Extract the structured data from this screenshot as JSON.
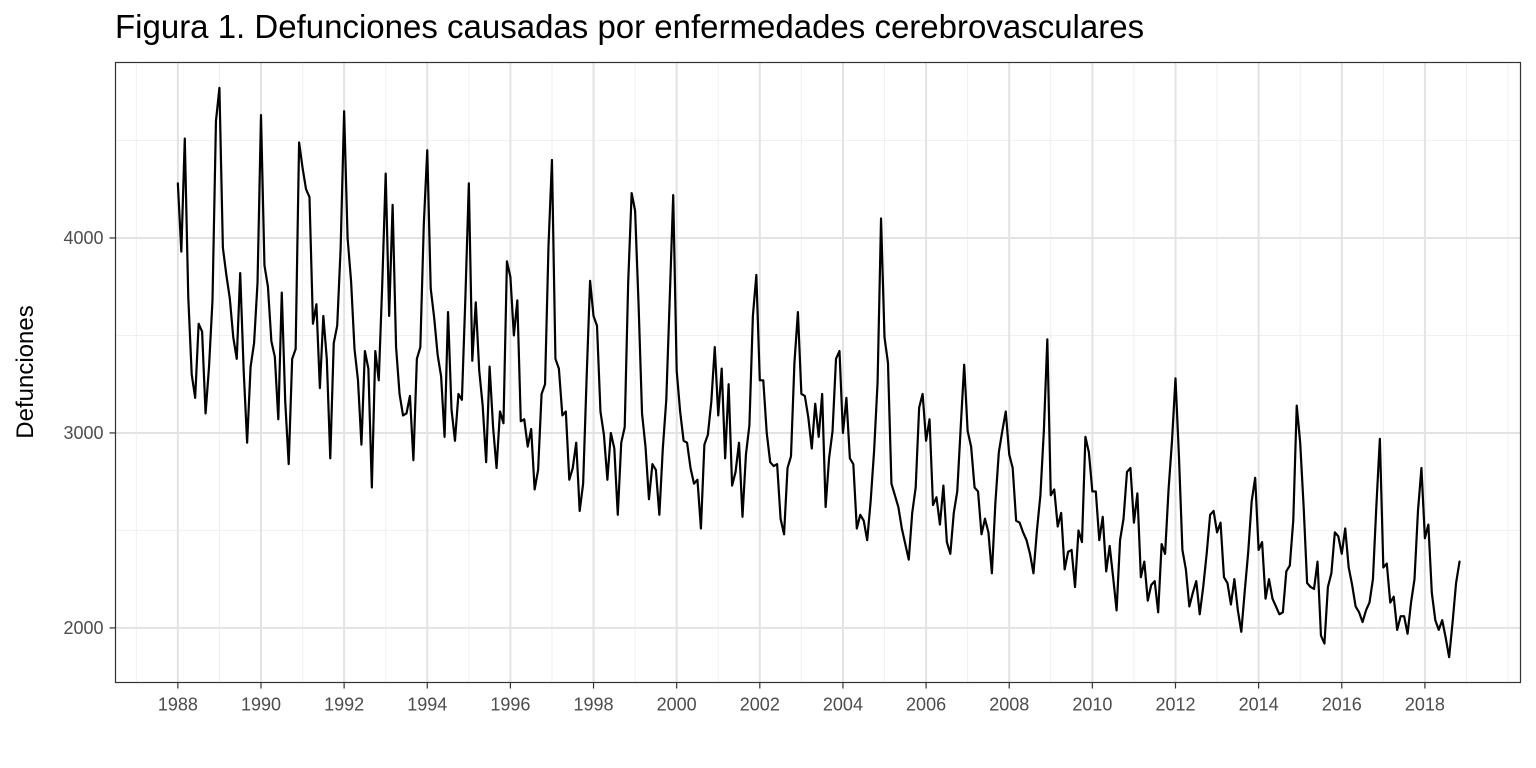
{
  "chart_data": {
    "type": "line",
    "title": "Figura 1. Defunciones causadas por enfermedades cerebrovasculares",
    "xlabel": "",
    "ylabel": "Defunciones",
    "x_start": "1988-01",
    "x_frequency": "monthly",
    "xlim": [
      1986.5,
      2020.3
    ],
    "ylim": [
      1720,
      4900
    ],
    "x_ticks": [
      1988,
      1990,
      1992,
      1994,
      1996,
      1998,
      2000,
      2002,
      2004,
      2006,
      2008,
      2010,
      2012,
      2014,
      2016,
      2018
    ],
    "y_ticks": [
      2000,
      3000,
      4000
    ],
    "grid": true,
    "legend": "none",
    "series": [
      {
        "color": "#000000",
        "values": [
          4280,
          3930,
          4510,
          3700,
          3300,
          3180,
          3560,
          3520,
          3100,
          3340,
          3680,
          4600,
          4770,
          3950,
          3810,
          3690,
          3490,
          3380,
          3820,
          3320,
          2950,
          3340,
          3460,
          3770,
          4630,
          3860,
          3750,
          3470,
          3390,
          3070,
          3720,
          3160,
          2840,
          3380,
          3430,
          4490,
          4360,
          4250,
          4210,
          3560,
          3660,
          3230,
          3600,
          3380,
          2870,
          3460,
          3550,
          3950,
          4650,
          4000,
          3780,
          3430,
          3270,
          2940,
          3420,
          3330,
          2720,
          3420,
          3270,
          3760,
          4330,
          3600,
          4170,
          3440,
          3200,
          3090,
          3100,
          3190,
          2860,
          3380,
          3440,
          4070,
          4450,
          3740,
          3590,
          3400,
          3290,
          2980,
          3620,
          3120,
          2960,
          3200,
          3170,
          3690,
          4280,
          3370,
          3670,
          3320,
          3140,
          2850,
          3340,
          3030,
          2820,
          3110,
          3050,
          3880,
          3800,
          3500,
          3680,
          3060,
          3070,
          2930,
          3020,
          2710,
          2810,
          3200,
          3250,
          3960,
          4400,
          3380,
          3330,
          3090,
          3110,
          2760,
          2820,
          2950,
          2600,
          2740,
          3280,
          3780,
          3600,
          3550,
          3110,
          2990,
          2760,
          3000,
          2920,
          2580,
          2950,
          3030,
          3770,
          4230,
          4140,
          3660,
          3100,
          2930,
          2660,
          2840,
          2810,
          2580,
          2920,
          3170,
          3690,
          4220,
          3320,
          3110,
          2960,
          2950,
          2820,
          2740,
          2760,
          2510,
          2940,
          2990,
          3160,
          3440,
          3090,
          3330,
          2870,
          3250,
          2730,
          2800,
          2950,
          2570,
          2890,
          3040,
          3600,
          3810,
          3270,
          3270,
          3000,
          2850,
          2830,
          2840,
          2560,
          2480,
          2820,
          2880,
          3360,
          3620,
          3200,
          3190,
          3080,
          2920,
          3150,
          2980,
          3200,
          2620,
          2870,
          3010,
          3380,
          3420,
          3000,
          3180,
          2870,
          2840,
          2510,
          2580,
          2550,
          2450,
          2650,
          2910,
          3260,
          4100,
          3490,
          3360,
          2740,
          2680,
          2620,
          2510,
          2430,
          2350,
          2590,
          2720,
          3130,
          3200,
          2960,
          3070,
          2630,
          2670,
          2530,
          2730,
          2440,
          2380,
          2590,
          2700,
          3030,
          3350,
          3010,
          2930,
          2720,
          2700,
          2480,
          2560,
          2490,
          2280,
          2640,
          2900,
          3010,
          3110,
          2890,
          2820,
          2550,
          2540,
          2490,
          2450,
          2380,
          2280,
          2500,
          2680,
          3010,
          3480,
          2680,
          2710,
          2520,
          2590,
          2300,
          2390,
          2400,
          2210,
          2500,
          2440,
          2980,
          2900,
          2700,
          2700,
          2450,
          2570,
          2290,
          2420,
          2260,
          2090,
          2450,
          2560,
          2800,
          2820,
          2540,
          2690,
          2260,
          2340,
          2140,
          2220,
          2240,
          2080,
          2430,
          2380,
          2710,
          2960,
          3280,
          2880,
          2400,
          2300,
          2110,
          2180,
          2240,
          2070,
          2210,
          2380,
          2580,
          2600,
          2490,
          2540,
          2260,
          2230,
          2120,
          2250,
          2090,
          1980,
          2190,
          2390,
          2650,
          2770,
          2400,
          2440,
          2150,
          2250,
          2150,
          2110,
          2070,
          2080,
          2290,
          2320,
          2550,
          3140,
          2950,
          2620,
          2230,
          2210,
          2200,
          2340,
          1960,
          1920,
          2210,
          2280,
          2490,
          2470,
          2380,
          2510,
          2310,
          2220,
          2110,
          2080,
          2030,
          2090,
          2130,
          2250,
          2630,
          2970,
          2310,
          2330,
          2130,
          2160,
          1990,
          2060,
          2060,
          1970,
          2130,
          2250,
          2600,
          2820,
          2460,
          2530,
          2180,
          2040,
          1990,
          2040,
          1950,
          1850,
          2030,
          2230,
          2340
        ]
      }
    ]
  }
}
